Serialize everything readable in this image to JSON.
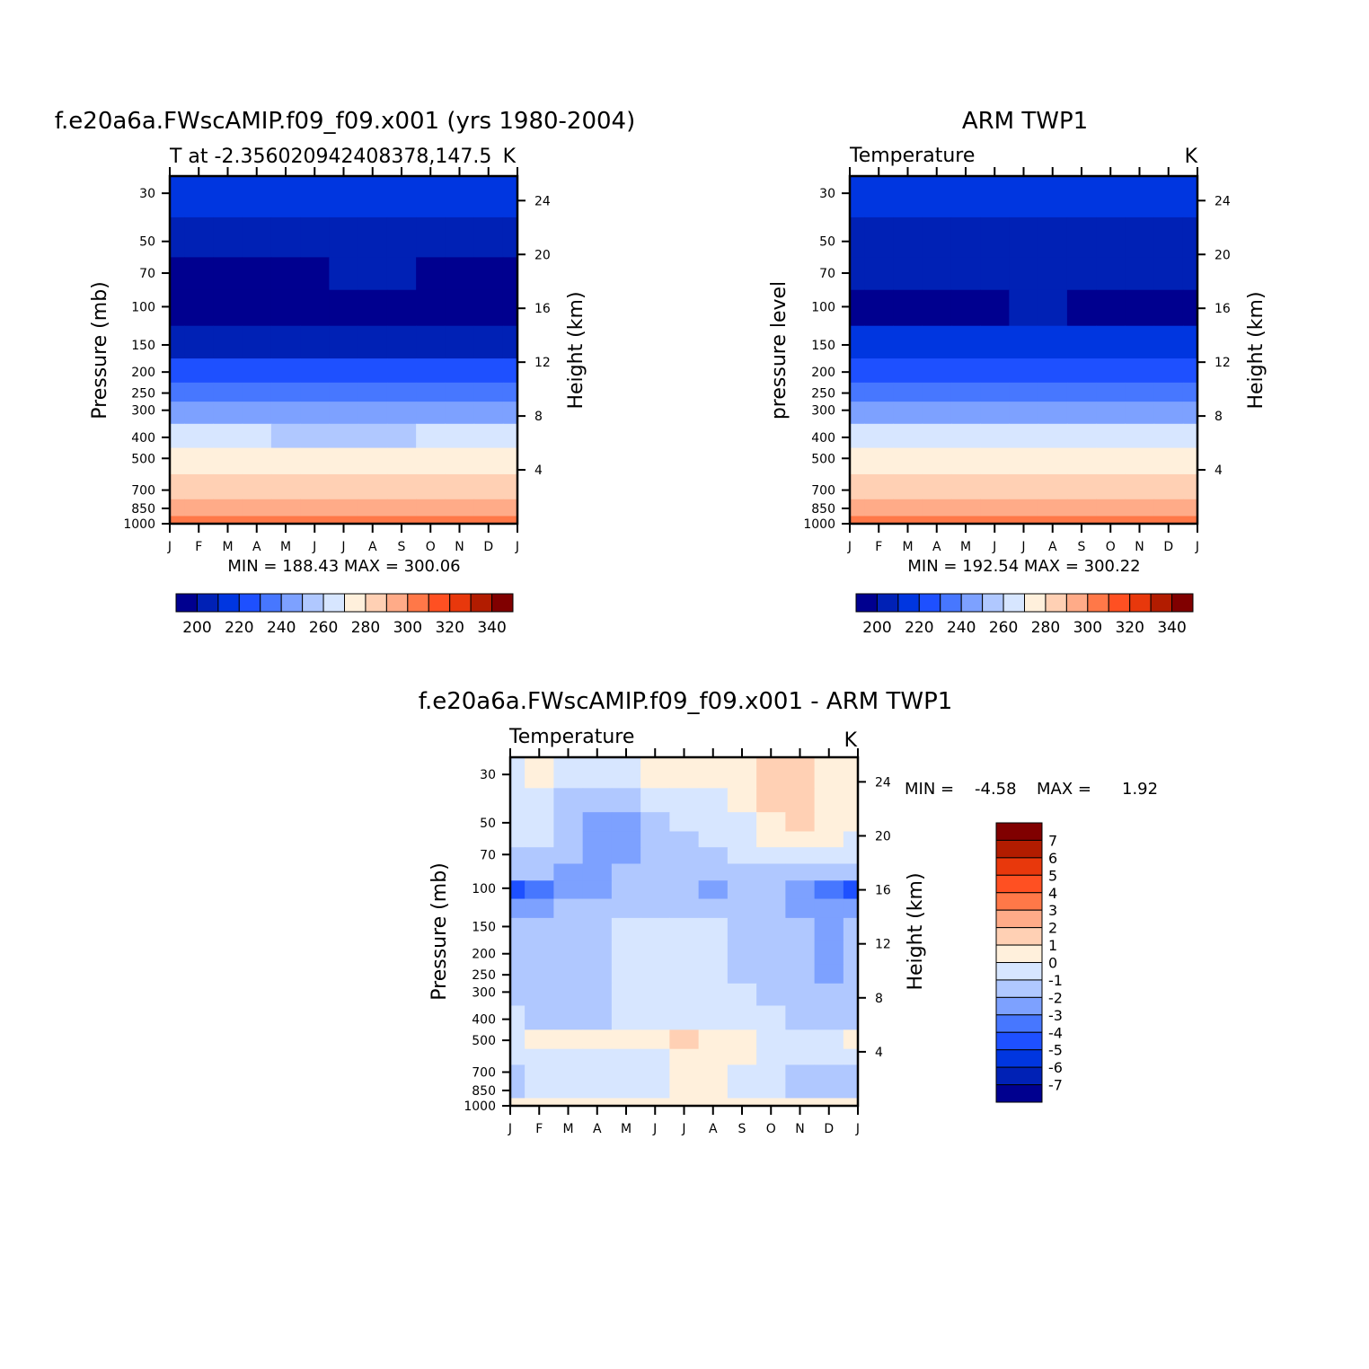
{
  "panels": [
    {
      "id": "model",
      "title": "f.e20a6a.FWscAMIP.f09_f09.x001 (yrs 1980-2004)",
      "left_label": "T at -2.356020942408378,147.5",
      "right_label": "K",
      "ylabel": "Pressure (mb)",
      "ylabel_right": "Height (km)",
      "stats": "MIN = 188.43 MAX = 300.06"
    },
    {
      "id": "obs",
      "title": "ARM TWP1",
      "left_label": "Temperature",
      "right_label": "K",
      "ylabel": "pressure level",
      "ylabel_right": "Height (km)",
      "stats": "MIN = 192.54 MAX = 300.22"
    },
    {
      "id": "diff",
      "title": "f.e20a6a.FWscAMIP.f09_f09.x001 - ARM TWP1",
      "left_label": "Temperature",
      "right_label": "K",
      "ylabel": "Pressure (mb)",
      "ylabel_right": "Height (km)",
      "stats_min_label": "MIN =",
      "stats_min": "-4.58",
      "stats_max_label": "MAX =",
      "stats_max": "1.92"
    }
  ],
  "chart_data": [
    {
      "type": "heatmap",
      "title": "f.e20a6a.FWscAMIP.f09_f09.x001 (yrs 1980-2004)",
      "subtitle": "T at -2.356020942408378,147.5",
      "units": "K",
      "xlabel": "",
      "ylabel": "Pressure (mb)",
      "ylabel_right": "Height (km)",
      "x_ticks": [
        "J",
        "F",
        "M",
        "A",
        "M",
        "J",
        "J",
        "A",
        "S",
        "O",
        "N",
        "D",
        "J"
      ],
      "y_ticks": [
        30,
        50,
        70,
        100,
        150,
        200,
        250,
        300,
        400,
        500,
        700,
        850,
        1000
      ],
      "y_right_ticks": [
        24,
        20,
        16,
        12,
        8,
        4
      ],
      "y_scale": "log",
      "ylim": [
        25,
        1000
      ],
      "pressure_levels": [
        30,
        50,
        70,
        100,
        150,
        200,
        250,
        300,
        400,
        500,
        700,
        850,
        1000
      ],
      "values_by_level": [
        [
          212,
          212,
          211,
          210,
          209,
          209,
          209,
          209,
          210,
          210,
          211,
          212,
          212
        ],
        [
          200,
          200,
          199,
          198,
          197,
          196,
          196,
          196,
          197,
          198,
          199,
          200,
          200
        ],
        [
          194,
          193,
          192,
          192,
          193,
          194,
          195,
          196,
          195,
          194,
          193,
          194,
          194
        ],
        [
          191,
          190,
          189,
          189,
          190,
          191,
          192,
          192,
          192,
          191,
          190,
          190,
          191
        ],
        [
          204,
          204,
          204,
          204,
          204,
          204,
          204,
          204,
          204,
          204,
          204,
          204,
          204
        ],
        [
          218,
          218,
          218,
          218,
          218,
          218,
          218,
          218,
          218,
          218,
          218,
          218,
          218
        ],
        [
          229,
          229,
          229,
          229,
          229,
          229,
          229,
          229,
          229,
          229,
          229,
          229,
          229
        ],
        [
          239,
          239,
          239,
          239,
          238,
          238,
          238,
          238,
          238,
          239,
          239,
          239,
          239
        ],
        [
          255,
          255,
          255,
          255,
          254,
          254,
          254,
          254,
          254,
          255,
          255,
          255,
          255
        ],
        [
          266,
          266,
          266,
          266,
          266,
          265,
          265,
          265,
          266,
          266,
          266,
          266,
          266
        ],
        [
          282,
          282,
          282,
          282,
          282,
          281,
          281,
          281,
          282,
          282,
          282,
          282,
          282
        ],
        [
          290,
          290,
          290,
          290,
          290,
          290,
          290,
          290,
          290,
          290,
          290,
          290,
          290
        ],
        [
          300,
          300,
          300,
          300,
          299,
          299,
          299,
          299,
          299,
          300,
          300,
          300,
          300
        ]
      ],
      "min": 188.43,
      "max": 300.06,
      "colorbar": {
        "levels": [
          195,
          200,
          205,
          210,
          215,
          220,
          225,
          230,
          235,
          240,
          245,
          250,
          255,
          260,
          265,
          270,
          275,
          280,
          285,
          290,
          295,
          300,
          305,
          310,
          315,
          320,
          325,
          330,
          335,
          340,
          345
        ],
        "labels": [
          "200",
          "220",
          "240",
          "260",
          "280",
          "300",
          "320",
          "340"
        ]
      }
    },
    {
      "type": "heatmap",
      "title": "ARM TWP1",
      "subtitle": "Temperature",
      "units": "K",
      "xlabel": "",
      "ylabel": "pressure level",
      "ylabel_right": "Height (km)",
      "x_ticks": [
        "J",
        "F",
        "M",
        "A",
        "M",
        "J",
        "J",
        "A",
        "S",
        "O",
        "N",
        "D",
        "J"
      ],
      "y_ticks": [
        30,
        50,
        70,
        100,
        150,
        200,
        250,
        300,
        400,
        500,
        700,
        850,
        1000
      ],
      "y_right_ticks": [
        24,
        20,
        16,
        12,
        8,
        4
      ],
      "y_scale": "log",
      "ylim": [
        25,
        1000
      ],
      "pressure_levels": [
        30,
        50,
        70,
        100,
        150,
        200,
        250,
        300,
        400,
        500,
        700,
        850,
        1000
      ],
      "values_by_level": [
        [
          213,
          213,
          212,
          211,
          210,
          210,
          210,
          210,
          211,
          211,
          212,
          213,
          213
        ],
        [
          201,
          201,
          200,
          199,
          198,
          197,
          197,
          197,
          198,
          199,
          200,
          201,
          201
        ],
        [
          196,
          196,
          195,
          195,
          196,
          197,
          198,
          199,
          198,
          197,
          196,
          196,
          196
        ],
        [
          194,
          193,
          193,
          193,
          193,
          194,
          195,
          195,
          194,
          193,
          193,
          193,
          194
        ],
        [
          205,
          205,
          205,
          205,
          205,
          205,
          205,
          205,
          205,
          205,
          205,
          205,
          205
        ],
        [
          219,
          219,
          219,
          219,
          219,
          219,
          219,
          219,
          219,
          219,
          219,
          219,
          219
        ],
        [
          230,
          230,
          230,
          230,
          230,
          230,
          230,
          230,
          230,
          230,
          230,
          230,
          230
        ],
        [
          240,
          240,
          240,
          240,
          240,
          239,
          239,
          239,
          240,
          240,
          240,
          240,
          240
        ],
        [
          256,
          256,
          256,
          256,
          256,
          255,
          255,
          255,
          256,
          256,
          256,
          256,
          256
        ],
        [
          267,
          267,
          267,
          267,
          266,
          266,
          266,
          266,
          266,
          267,
          267,
          267,
          267
        ],
        [
          281,
          281,
          281,
          281,
          281,
          280,
          280,
          280,
          281,
          281,
          281,
          281,
          281
        ],
        [
          290,
          290,
          290,
          290,
          290,
          289,
          289,
          289,
          290,
          290,
          290,
          290,
          290
        ],
        [
          300,
          300,
          300,
          300,
          300,
          299,
          299,
          299,
          299,
          300,
          300,
          300,
          300
        ]
      ],
      "min": 192.54,
      "max": 300.22,
      "colorbar": {
        "levels": [
          195,
          200,
          205,
          210,
          215,
          220,
          225,
          230,
          235,
          240,
          245,
          250,
          255,
          260,
          265,
          270,
          275,
          280,
          285,
          290,
          295,
          300,
          305,
          310,
          315,
          320,
          325,
          330,
          335,
          340,
          345
        ],
        "labels": [
          "200",
          "220",
          "240",
          "260",
          "280",
          "300",
          "320",
          "340"
        ]
      }
    },
    {
      "type": "heatmap",
      "title": "f.e20a6a.FWscAMIP.f09_f09.x001 - ARM TWP1",
      "subtitle": "Temperature",
      "units": "K",
      "xlabel": "",
      "ylabel": "Pressure (mb)",
      "ylabel_right": "Height (km)",
      "x_ticks": [
        "J",
        "F",
        "M",
        "A",
        "M",
        "J",
        "J",
        "A",
        "S",
        "O",
        "N",
        "D",
        "J"
      ],
      "y_ticks": [
        30,
        50,
        70,
        100,
        150,
        200,
        250,
        300,
        400,
        500,
        700,
        850,
        1000
      ],
      "y_right_ticks": [
        24,
        20,
        16,
        12,
        8,
        4
      ],
      "y_scale": "log",
      "ylim": [
        25,
        1000
      ],
      "pressure_levels": [
        25,
        30,
        40,
        50,
        60,
        70,
        85,
        100,
        125,
        150,
        200,
        250,
        300,
        400,
        500,
        600,
        700,
        850,
        1000
      ],
      "values_by_level": [
        [
          -0.5,
          0.5,
          -0.5,
          -0.5,
          -0.5,
          0.5,
          0.5,
          0.5,
          0.5,
          1.5,
          1.5,
          0.5,
          0.5
        ],
        [
          -0.5,
          0.5,
          -0.5,
          -0.5,
          -0.5,
          0.5,
          0.5,
          0.5,
          0.5,
          1.5,
          1.5,
          0.5,
          0.5
        ],
        [
          -0.5,
          -0.5,
          -1.5,
          -1.5,
          -1.5,
          -0.5,
          -0.5,
          -0.5,
          0.5,
          1.5,
          1.5,
          0.5,
          0.5
        ],
        [
          -0.5,
          -0.5,
          -1.5,
          -2.5,
          -2.5,
          -1.5,
          -0.5,
          -0.5,
          -0.5,
          0.5,
          1.5,
          0.5,
          0.5
        ],
        [
          -0.5,
          -0.5,
          -1.5,
          -2.5,
          -2.5,
          -1.5,
          -1.5,
          -0.5,
          -0.5,
          0.5,
          0.5,
          0.5,
          -0.5
        ],
        [
          -1.5,
          -1.5,
          -1.5,
          -2.5,
          -2.5,
          -1.5,
          -1.5,
          -1.5,
          -0.5,
          -0.5,
          -0.5,
          -0.5,
          -0.5
        ],
        [
          -1.5,
          -1.5,
          -2.5,
          -2.5,
          -1.5,
          -1.5,
          -1.5,
          -1.5,
          -1.5,
          -1.5,
          -1.5,
          -1.5,
          -1.5
        ],
        [
          -4.5,
          -3.5,
          -2.5,
          -2.5,
          -1.5,
          -1.5,
          -1.5,
          -2.5,
          -1.5,
          -1.5,
          -2.5,
          -3.5,
          -4.5
        ],
        [
          -2.5,
          -2.5,
          -1.5,
          -1.5,
          -1.5,
          -1.5,
          -1.5,
          -1.5,
          -1.5,
          -1.5,
          -2.5,
          -2.5,
          -2.5
        ],
        [
          -1.5,
          -1.5,
          -1.5,
          -1.5,
          -0.5,
          -0.5,
          -0.5,
          -0.5,
          -1.5,
          -1.5,
          -1.5,
          -2.5,
          -1.5
        ],
        [
          -1.5,
          -1.5,
          -1.5,
          -1.5,
          -0.5,
          -0.5,
          -0.5,
          -0.5,
          -1.5,
          -1.5,
          -1.5,
          -2.5,
          -1.5
        ],
        [
          -1.5,
          -1.5,
          -1.5,
          -1.5,
          -0.5,
          -0.5,
          -0.5,
          -0.5,
          -1.5,
          -1.5,
          -1.5,
          -2.5,
          -1.5
        ],
        [
          -1.5,
          -1.5,
          -1.5,
          -1.5,
          -0.5,
          -0.5,
          -0.5,
          -0.5,
          -0.5,
          -1.5,
          -1.5,
          -1.5,
          -1.5
        ],
        [
          -0.5,
          -1.5,
          -1.5,
          -1.5,
          -0.5,
          -0.5,
          -0.5,
          -0.5,
          -0.5,
          -0.5,
          -1.5,
          -1.5,
          -1.5
        ],
        [
          -0.5,
          0.5,
          0.5,
          0.5,
          0.5,
          0.5,
          1.5,
          0.5,
          0.5,
          -0.5,
          -0.5,
          -0.5,
          0.5
        ],
        [
          -0.5,
          -0.5,
          -0.5,
          -0.5,
          -0.5,
          -0.5,
          0.5,
          0.5,
          0.5,
          -0.5,
          -0.5,
          -0.5,
          -0.5
        ],
        [
          -1.5,
          -0.5,
          -0.5,
          -0.5,
          -0.5,
          -0.5,
          0.5,
          0.5,
          -0.5,
          -0.5,
          -1.5,
          -1.5,
          -1.5
        ],
        [
          -1.5,
          -0.5,
          -0.5,
          -0.5,
          -0.5,
          -0.5,
          0.5,
          0.5,
          -0.5,
          -0.5,
          -1.5,
          -1.5,
          -1.5
        ],
        [
          0.5,
          0.5,
          0.5,
          0.5,
          0.5,
          0.5,
          0.5,
          0.5,
          0.5,
          0.5,
          0.5,
          0.5,
          0.5
        ]
      ],
      "min": -4.58,
      "max": 1.92,
      "colorbar": {
        "levels": [
          -7,
          -6,
          -5,
          -4,
          -3,
          -2,
          -1,
          0,
          1,
          2,
          3,
          4,
          5,
          6,
          7
        ],
        "labels": [
          "7",
          "6",
          "5",
          "4",
          "3",
          "2",
          "1",
          "0",
          "-1",
          "-2",
          "-3",
          "-4",
          "-5",
          "-6",
          "-7"
        ]
      }
    }
  ],
  "colors": {
    "temperature_palette": [
      "#00008f",
      "#0021b5",
      "#0036e0",
      "#1e50ff",
      "#4777ff",
      "#7da1ff",
      "#b0c8ff",
      "#d7e6ff",
      "#fff0dc",
      "#ffd0b4",
      "#ffab88",
      "#ff7848",
      "#ff5022",
      "#e8380c",
      "#b21c00",
      "#800000"
    ],
    "diff_palette": [
      "#00008f",
      "#0021b5",
      "#0036e0",
      "#1e50ff",
      "#4777ff",
      "#7da1ff",
      "#b0c8ff",
      "#d7e6ff",
      "#fff0dc",
      "#ffd0b4",
      "#ffab88",
      "#ff7848",
      "#ff5022",
      "#e8380c",
      "#b21c00",
      "#800000"
    ],
    "axis": "#000000"
  }
}
